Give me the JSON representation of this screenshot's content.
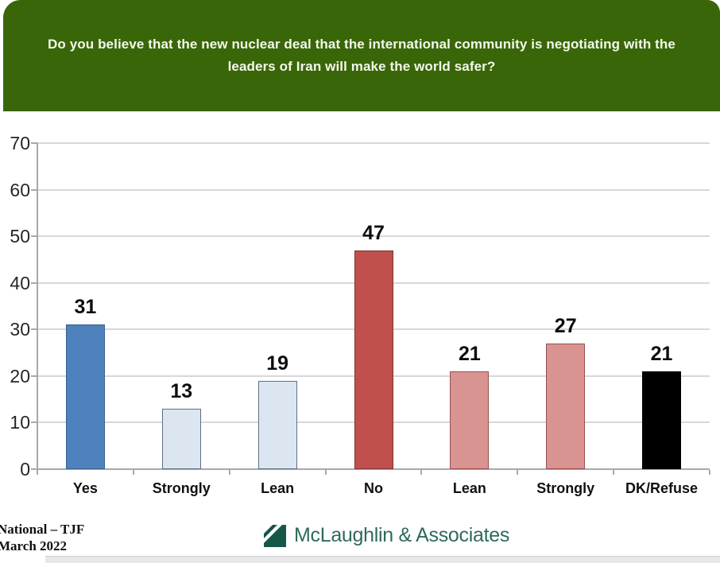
{
  "header": {
    "question_line1": "Do you believe that the new nuclear deal that the international community is negotiating with the",
    "question_line2": "leaders of Iran will make the world safer?",
    "bg_color": "#396608",
    "text_color": "#f4f8ec"
  },
  "chart_data": {
    "type": "bar",
    "categories": [
      "Yes",
      "Strongly",
      "Lean",
      "No",
      "Lean",
      "Strongly",
      "DK/Refuse"
    ],
    "values": [
      31,
      13,
      19,
      47,
      21,
      27,
      21
    ],
    "value_labels": [
      "31",
      "13",
      "19",
      "47",
      "21",
      "27",
      "21"
    ],
    "bar_colors": [
      {
        "fill": "#4f81bd",
        "border": "#3a5f8f"
      },
      {
        "fill": "#dce6f1",
        "border": "#5f7083"
      },
      {
        "fill": "#dce6f1",
        "border": "#5f7083"
      },
      {
        "fill": "#c0504d",
        "border": "#7f3331"
      },
      {
        "fill": "#d99391",
        "border": "#96504e"
      },
      {
        "fill": "#d99391",
        "border": "#96504e"
      },
      {
        "fill": "#000000",
        "border": "#000000"
      }
    ],
    "title": "",
    "xlabel": "",
    "ylabel": "",
    "ylim": [
      0,
      70
    ],
    "ytick_step": 10,
    "ytick_labels": [
      "0",
      "10",
      "20",
      "30",
      "40",
      "50",
      "60",
      "70"
    ],
    "grid": true,
    "legend": "none"
  },
  "footer": {
    "source_line1": "National – TJF",
    "source_line2": "March 2022",
    "logo_name": "mclaughlin-logo",
    "logo_text": "McLaughlin & Associates",
    "logo_square_color": "#155748",
    "logo_text_color": "#2e6a5c"
  }
}
